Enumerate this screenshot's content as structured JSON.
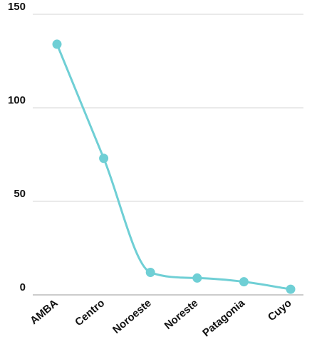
{
  "chart_data": {
    "type": "line",
    "categories": [
      "AMBA",
      "Centro",
      "Noroeste",
      "Noreste",
      "Patagonia",
      "Cuyo"
    ],
    "series": [
      {
        "values": [
          134,
          73,
          12,
          9,
          7,
          3
        ],
        "color": "#6fcfd5"
      }
    ],
    "y_ticks": [
      "0",
      "50",
      "100",
      "150"
    ],
    "ylim": [
      0,
      150
    ],
    "grid": true,
    "smooth": true,
    "markers": true,
    "legend": "none"
  }
}
